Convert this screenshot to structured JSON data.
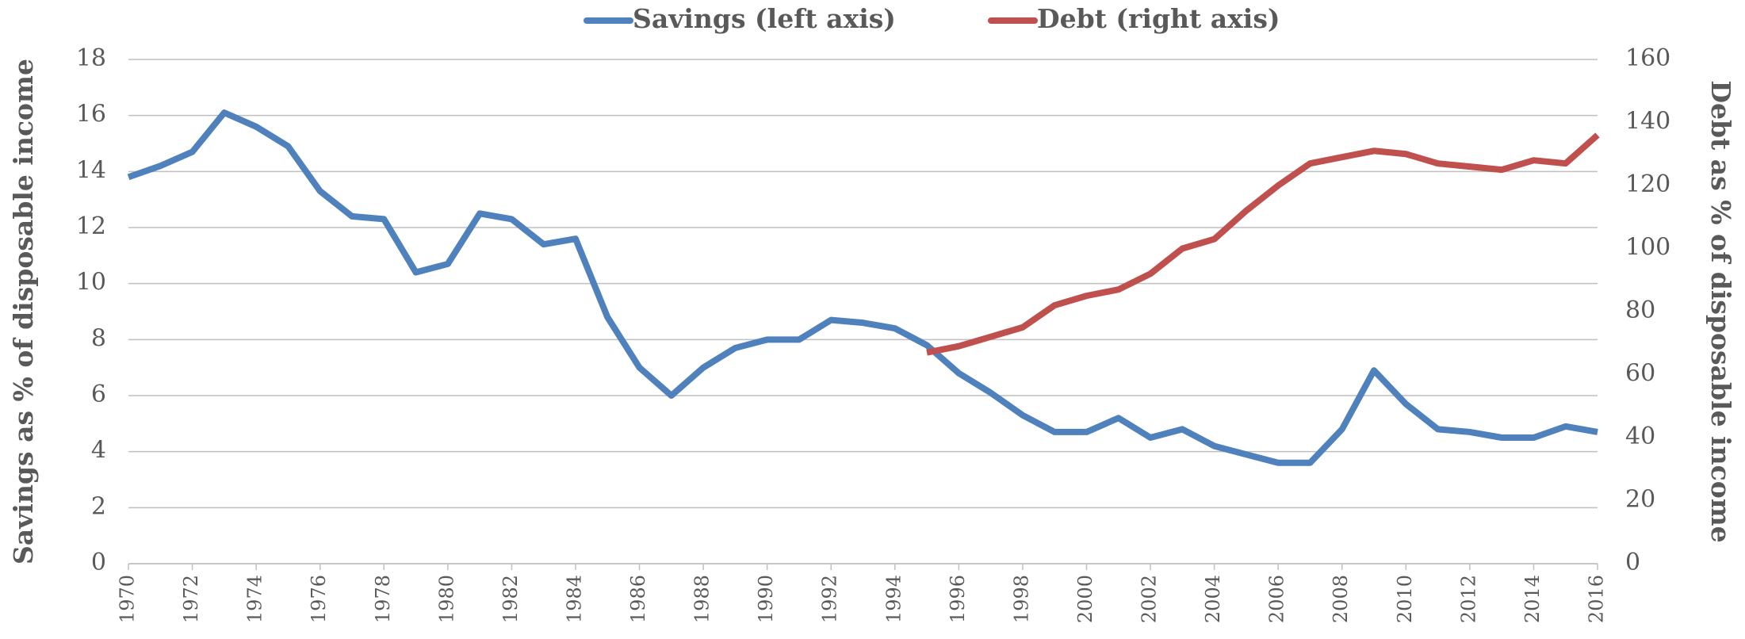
{
  "chart_data": {
    "type": "line",
    "x": [
      1970,
      1971,
      1972,
      1973,
      1974,
      1975,
      1976,
      1977,
      1978,
      1979,
      1980,
      1981,
      1982,
      1983,
      1984,
      1985,
      1986,
      1987,
      1988,
      1989,
      1990,
      1991,
      1992,
      1993,
      1994,
      1995,
      1996,
      1997,
      1998,
      1999,
      2000,
      2001,
      2002,
      2003,
      2004,
      2005,
      2006,
      2007,
      2008,
      2009,
      2010,
      2011,
      2012,
      2013,
      2014,
      2015,
      2016
    ],
    "xlim": [
      1970,
      2016
    ],
    "xticks": [
      1970,
      1972,
      1974,
      1976,
      1978,
      1980,
      1982,
      1984,
      1986,
      1988,
      1990,
      1992,
      1994,
      1996,
      1998,
      2000,
      2002,
      2004,
      2006,
      2008,
      2010,
      2012,
      2014,
      2016
    ],
    "y_label": "Savings as % of disposable income",
    "y2_label": "Debt as % of disposable income",
    "ylim": [
      0,
      18
    ],
    "yticks": [
      0,
      2,
      4,
      6,
      8,
      10,
      12,
      14,
      16,
      18
    ],
    "y2lim": [
      0,
      160
    ],
    "y2ticks": [
      0,
      20,
      40,
      60,
      80,
      100,
      120,
      140,
      160
    ],
    "grid": true,
    "legend": "top",
    "series": [
      {
        "name": "Savings (left axis)",
        "color": "#4f81bd",
        "values": [
          13.8,
          14.2,
          14.7,
          16.1,
          15.6,
          14.9,
          13.3,
          12.4,
          12.3,
          10.4,
          10.7,
          12.5,
          12.3,
          11.4,
          11.6,
          8.8,
          7.0,
          6.0,
          7.0,
          7.7,
          8.0,
          8.0,
          8.7,
          8.6,
          8.4,
          7.8,
          6.8,
          6.1,
          5.3,
          4.7,
          4.7,
          5.2,
          4.5,
          4.8,
          4.2,
          3.9,
          3.6,
          3.6,
          4.8,
          6.9,
          5.7,
          4.8,
          4.7,
          4.5,
          4.5,
          4.9,
          4.7
        ]
      },
      {
        "name": "Debt (right axis)",
        "color": "#c0504d",
        "axis": "y2",
        "values": [
          null,
          null,
          null,
          null,
          null,
          null,
          null,
          null,
          null,
          null,
          null,
          null,
          null,
          null,
          null,
          null,
          null,
          null,
          null,
          null,
          null,
          null,
          null,
          null,
          null,
          67,
          69,
          72,
          75,
          82,
          85,
          87,
          92,
          100,
          103,
          112,
          120,
          127,
          129,
          131,
          130,
          127,
          126,
          125,
          128,
          127,
          136
        ]
      }
    ]
  }
}
